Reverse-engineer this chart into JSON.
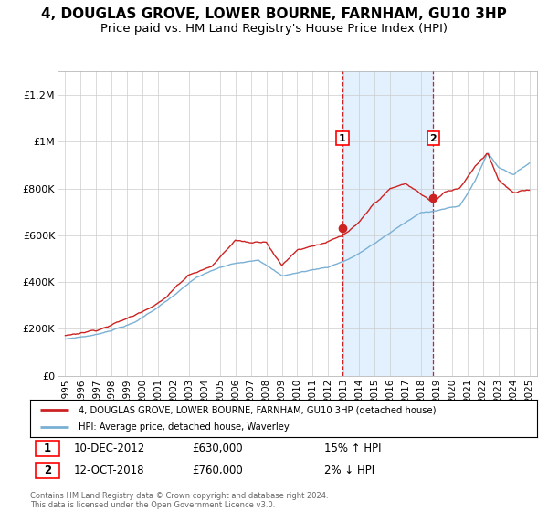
{
  "title": "4, DOUGLAS GROVE, LOWER BOURNE, FARNHAM, GU10 3HP",
  "subtitle": "Price paid vs. HM Land Registry's House Price Index (HPI)",
  "title_fontsize": 11,
  "subtitle_fontsize": 9.5,
  "background_color": "#ffffff",
  "plot_bg_color": "#ffffff",
  "grid_color": "#cccccc",
  "hpi_line_color": "#7ab0d4",
  "price_line_color": "#cc2222",
  "shade_color": "#ddeeff",
  "dashed_line_color": "#cc2222",
  "sale1_date_num": 2012.92,
  "sale2_date_num": 2018.79,
  "sale1_label": "1",
  "sale2_label": "2",
  "sale1_price": 630000,
  "sale2_price": 760000,
  "ylim": [
    0,
    1300000
  ],
  "xlim_start": 1994.5,
  "xlim_end": 2025.5,
  "yticks": [
    0,
    200000,
    400000,
    600000,
    800000,
    1000000,
    1200000
  ],
  "ytick_labels": [
    "£0",
    "£200K",
    "£400K",
    "£600K",
    "£800K",
    "£1M",
    "£1.2M"
  ],
  "xticks": [
    1995,
    1996,
    1997,
    1998,
    1999,
    2000,
    2001,
    2002,
    2003,
    2004,
    2005,
    2006,
    2007,
    2008,
    2009,
    2010,
    2011,
    2012,
    2013,
    2014,
    2015,
    2016,
    2017,
    2018,
    2019,
    2020,
    2021,
    2022,
    2023,
    2024,
    2025
  ],
  "legend_label1": "4, DOUGLAS GROVE, LOWER BOURNE, FARNHAM, GU10 3HP (detached house)",
  "legend_label2": "HPI: Average price, detached house, Waverley",
  "annotation1_date": "10-DEC-2012",
  "annotation1_price": "£630,000",
  "annotation1_hpi": "15% ↑ HPI",
  "annotation2_date": "12-OCT-2018",
  "annotation2_price": "£760,000",
  "annotation2_hpi": "2% ↓ HPI",
  "footer": "Contains HM Land Registry data © Crown copyright and database right 2024.\nThis data is licensed under the Open Government Licence v3.0."
}
